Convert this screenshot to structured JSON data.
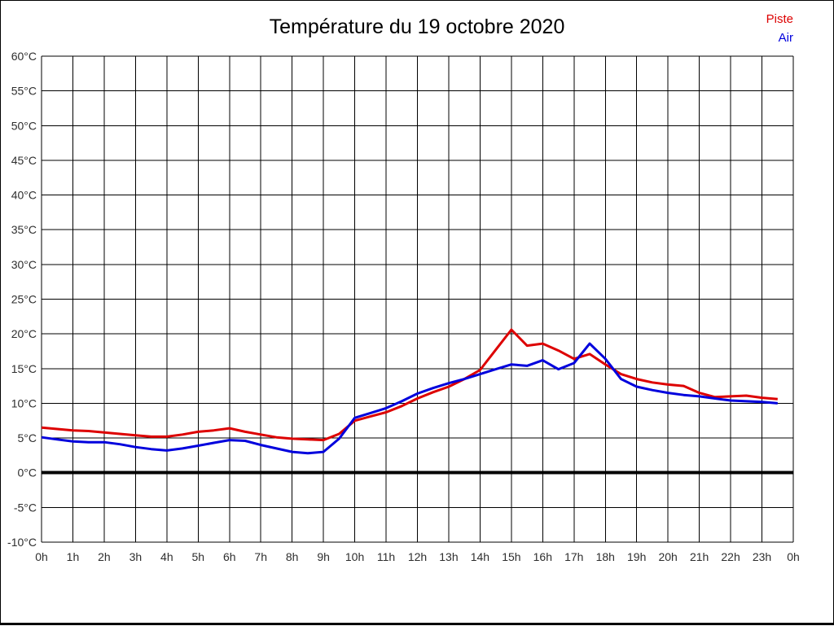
{
  "window": {
    "background": "#ffffff",
    "border_color": "#000000"
  },
  "chart_data": {
    "type": "line",
    "title": "Température du 19 octobre 2020",
    "xlabel": "",
    "ylabel": "",
    "x_unit": "hour of day",
    "xlim": [
      0,
      24
    ],
    "ylim": [
      -10,
      60
    ],
    "y_tick_step": 5,
    "y_tick_labels": [
      "60°C",
      "55°C",
      "50°C",
      "45°C",
      "40°C",
      "35°C",
      "30°C",
      "25°C",
      "20°C",
      "15°C",
      "10°C",
      "5°C",
      "0°C",
      "-5°C",
      "-10°C"
    ],
    "x_tick_labels": [
      "0h",
      "1h",
      "2h",
      "3h",
      "4h",
      "5h",
      "6h",
      "7h",
      "8h",
      "9h",
      "10h",
      "11h",
      "12h",
      "13h",
      "14h",
      "15h",
      "16h",
      "17h",
      "18h",
      "19h",
      "20h",
      "21h",
      "22h",
      "23h",
      "0h"
    ],
    "grid": {
      "show": true,
      "color": "#000000",
      "line_width": 1
    },
    "zero_line": {
      "value": 0,
      "color": "#000000",
      "line_width": 4
    },
    "legend_position": "top-right",
    "axis_label_color": "#2e2e2e",
    "x": [
      0,
      0.5,
      1,
      1.5,
      2,
      2.5,
      3,
      3.5,
      4,
      4.5,
      5,
      5.5,
      6,
      6.5,
      7,
      7.5,
      8,
      8.5,
      9,
      9.5,
      10,
      10.5,
      11,
      11.5,
      12,
      12.5,
      13,
      13.5,
      14,
      14.5,
      15,
      15.5,
      16,
      16.5,
      17,
      17.5,
      18,
      18.5,
      19,
      19.5,
      20,
      20.5,
      21,
      21.5,
      22,
      22.5,
      23,
      23.5
    ],
    "series": [
      {
        "name": "Piste",
        "color": "#dd0000",
        "values": [
          6.5,
          6.3,
          6.1,
          6.0,
          5.8,
          5.6,
          5.4,
          5.2,
          5.2,
          5.5,
          5.9,
          6.1,
          6.4,
          5.9,
          5.5,
          5.1,
          4.9,
          4.8,
          4.7,
          5.6,
          7.5,
          8.1,
          8.7,
          9.6,
          10.7,
          11.6,
          12.4,
          13.5,
          14.8,
          17.7,
          20.6,
          18.3,
          18.6,
          17.6,
          16.4,
          17.1,
          15.6,
          14.2,
          13.5,
          13.0,
          12.7,
          12.5,
          11.5,
          10.9,
          11.0,
          11.1,
          10.8,
          10.6
        ]
      },
      {
        "name": "Air",
        "color": "#0000dd",
        "values": [
          5.1,
          4.8,
          4.5,
          4.4,
          4.4,
          4.1,
          3.7,
          3.4,
          3.2,
          3.5,
          3.9,
          4.3,
          4.7,
          4.6,
          4.0,
          3.5,
          3.0,
          2.8,
          3.0,
          4.9,
          7.9,
          8.6,
          9.3,
          10.3,
          11.4,
          12.2,
          12.9,
          13.5,
          14.2,
          14.9,
          15.6,
          15.4,
          16.2,
          14.9,
          15.8,
          18.6,
          16.4,
          13.5,
          12.4,
          11.9,
          11.5,
          11.2,
          11.0,
          10.7,
          10.4,
          10.3,
          10.2,
          10.0
        ]
      }
    ]
  }
}
